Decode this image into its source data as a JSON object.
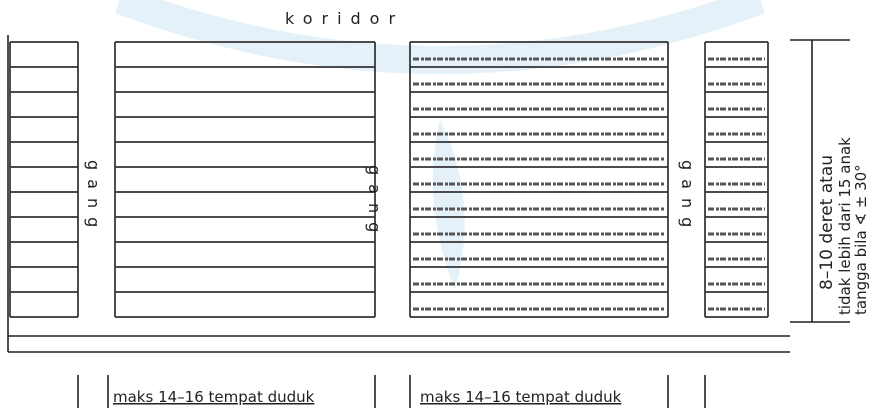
{
  "corridor": "koridor",
  "aisles": [
    "gang",
    "gang",
    "gang"
  ],
  "dimension": {
    "rows": "8–10 deret atau",
    "steps_line1": "tidak lebih dari 15 anak",
    "steps_line2": "tangga bila ∢ ± 30°"
  },
  "seat_limits": [
    "maks 14–16 tempat duduk",
    "maks 14–16 tempat duduk"
  ]
}
